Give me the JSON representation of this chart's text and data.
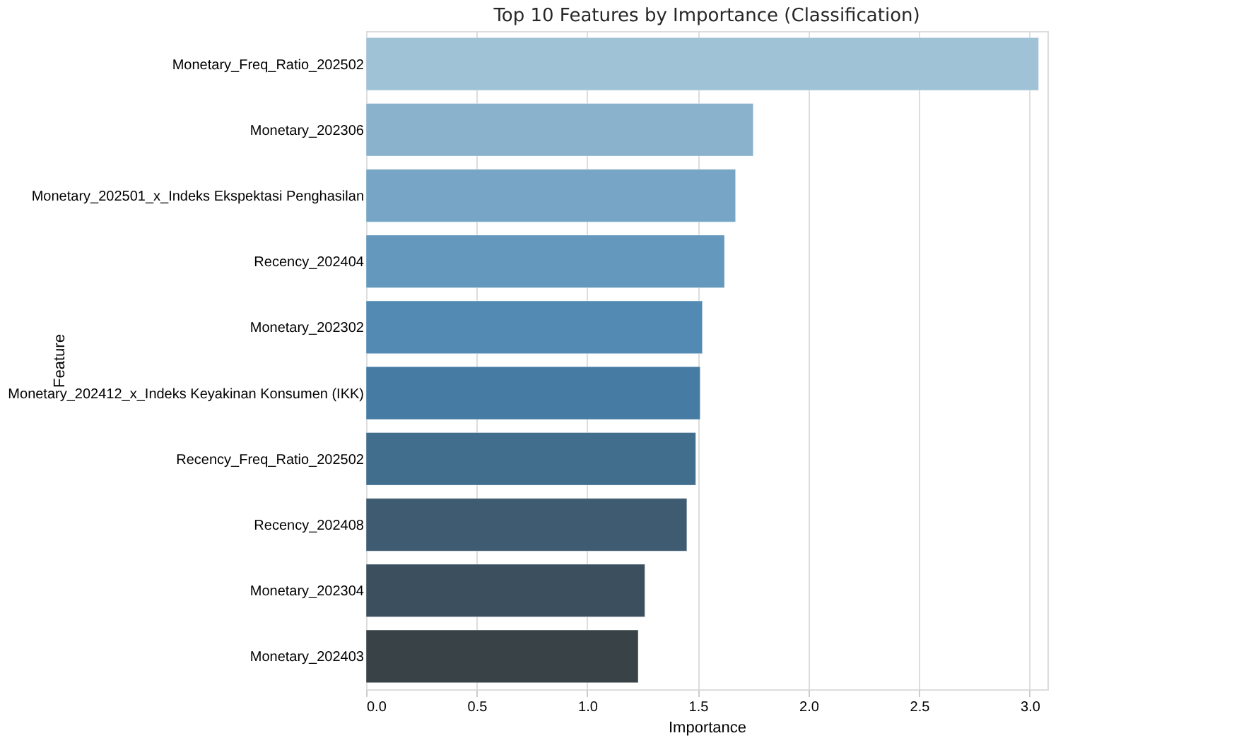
{
  "chart_data": {
    "type": "bar",
    "orientation": "horizontal",
    "title": "Top 10 Features by Importance (Classification)",
    "xlabel": "Importance",
    "ylabel": "Feature",
    "categories": [
      "Monetary_Freq_Ratio_202502",
      "Monetary_202306",
      "Monetary_202501_x_Indeks Ekspektasi Penghasilan",
      "Recency_202404",
      "Monetary_202302",
      "Monetary_202412_x_Indeks Keyakinan Konsumen (IKK)",
      "Recency_Freq_Ratio_202502",
      "Recency_202408",
      "Monetary_202304",
      "Monetary_202403"
    ],
    "values": [
      3.04,
      1.75,
      1.67,
      1.62,
      1.52,
      1.51,
      1.49,
      1.45,
      1.26,
      1.23
    ],
    "colors": [
      "#a0c2d7",
      "#8bb2cd",
      "#76a5c5",
      "#6498bd",
      "#528ab3",
      "#467ca3",
      "#416e8d",
      "#3f5b71",
      "#3b4f5f",
      "#384247"
    ],
    "xlim": [
      0,
      3.08
    ],
    "xticks": [
      {
        "value": 0,
        "label": "0.0"
      },
      0.5,
      {
        "value": 1,
        "label": "1.0"
      },
      1.5,
      {
        "value": 2,
        "label": "2.0"
      },
      2.5,
      {
        "value": 3,
        "label": "3.0"
      }
    ],
    "grid": "x"
  }
}
